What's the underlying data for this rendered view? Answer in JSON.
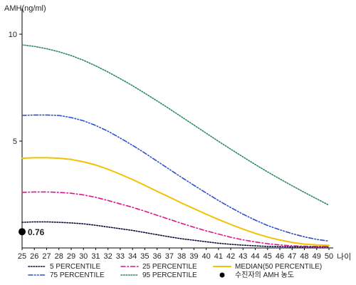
{
  "chart_data": {
    "type": "line",
    "ylabel": "AMH(ng/ml)",
    "xlabel": "나이",
    "x": [
      25,
      26,
      27,
      28,
      29,
      30,
      31,
      32,
      33,
      34,
      35,
      36,
      37,
      38,
      39,
      40,
      41,
      42,
      43,
      44,
      45,
      46,
      47,
      48,
      49,
      50
    ],
    "xlim": [
      25,
      50
    ],
    "ylim": [
      0,
      11
    ],
    "yticks": [
      5,
      10
    ],
    "grid": false,
    "legend_position": "bottom",
    "series": [
      {
        "name": "5 PERCENTILE",
        "color": "#0a0a3c",
        "dash": "dotted",
        "values": [
          1.2,
          1.22,
          1.22,
          1.2,
          1.17,
          1.13,
          1.06,
          0.98,
          0.9,
          0.82,
          0.72,
          0.62,
          0.52,
          0.43,
          0.36,
          0.29,
          0.22,
          0.17,
          0.13,
          0.1,
          0.07,
          0.06,
          0.05,
          0.05,
          0.05,
          0.05
        ]
      },
      {
        "name": "25 PERCENTILE",
        "color": "#e0148c",
        "dash": "dashdot",
        "values": [
          2.6,
          2.62,
          2.62,
          2.6,
          2.56,
          2.48,
          2.37,
          2.22,
          2.06,
          1.9,
          1.72,
          1.53,
          1.34,
          1.15,
          0.97,
          0.8,
          0.65,
          0.5,
          0.38,
          0.28,
          0.2,
          0.14,
          0.1,
          0.08,
          0.07,
          0.07
        ]
      },
      {
        "name": "MEDIAN(50 PERCENTILE)",
        "color": "#f2c200",
        "dash": "solid",
        "values": [
          4.2,
          4.22,
          4.22,
          4.2,
          4.14,
          4.03,
          3.88,
          3.68,
          3.45,
          3.2,
          2.93,
          2.65,
          2.38,
          2.1,
          1.84,
          1.58,
          1.33,
          1.1,
          0.88,
          0.68,
          0.51,
          0.37,
          0.26,
          0.18,
          0.14,
          0.12
        ]
      },
      {
        "name": "75 PERCENTILE",
        "color": "#3050c8",
        "dash": "dashdotdot",
        "values": [
          6.2,
          6.22,
          6.22,
          6.2,
          6.1,
          5.95,
          5.73,
          5.46,
          5.14,
          4.8,
          4.44,
          4.06,
          3.68,
          3.3,
          2.93,
          2.57,
          2.22,
          1.89,
          1.58,
          1.3,
          1.05,
          0.85,
          0.67,
          0.52,
          0.4,
          0.32
        ]
      },
      {
        "name": "95 PERCENTILE",
        "color": "#2a8a5a",
        "dash": "dotted",
        "values": [
          9.5,
          9.43,
          9.32,
          9.18,
          9.0,
          8.78,
          8.52,
          8.23,
          7.92,
          7.59,
          7.24,
          6.88,
          6.51,
          6.13,
          5.75,
          5.37,
          4.99,
          4.62,
          4.26,
          3.9,
          3.56,
          3.23,
          2.91,
          2.6,
          2.3,
          2.0
        ]
      }
    ],
    "markers": [
      {
        "name": "수진자의 AMH 농도",
        "x": 25,
        "y": 0.76,
        "label": "0.76",
        "color": "#000000"
      }
    ]
  }
}
